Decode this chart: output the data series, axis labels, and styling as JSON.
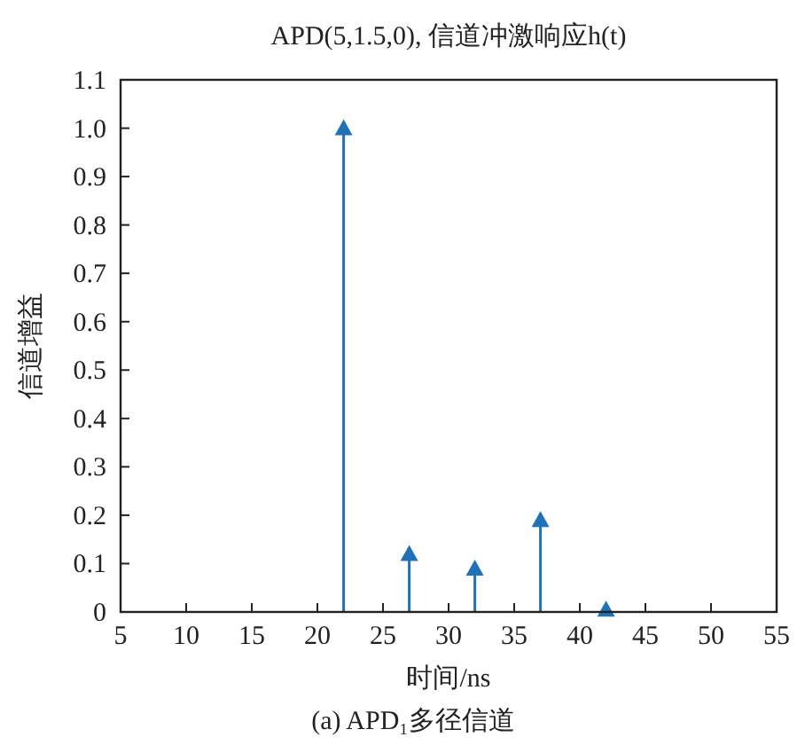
{
  "chart_data": {
    "type": "lollipop",
    "title": "APD(5,1.5,0), 信道冲激响应h(t)",
    "xlabel": "时间/ns",
    "ylabel": "信道增益",
    "annotations": [
      "(a) APD₁多径信道"
    ],
    "x": [
      22,
      27,
      32,
      37,
      42
    ],
    "values": [
      1.0,
      0.12,
      0.09,
      0.19,
      0.005
    ],
    "color": "#1f72b8",
    "marker": "triangle",
    "xlim": [
      5,
      55
    ],
    "ylim": [
      0,
      1.1
    ],
    "xticks": [
      5,
      10,
      15,
      20,
      25,
      30,
      35,
      40,
      45,
      50,
      55
    ],
    "yticks": [
      0,
      {
        "value": 0.1,
        "label": "0.1"
      },
      {
        "value": 0.2,
        "label": "0.2"
      },
      {
        "value": 0.3,
        "label": "0.3"
      },
      {
        "value": 0.4,
        "label": "0.4"
      },
      {
        "value": 0.5,
        "label": "0.5"
      },
      {
        "value": 0.6,
        "label": "0.6"
      },
      {
        "value": 0.7,
        "label": "0.7"
      },
      {
        "value": 0.8,
        "label": "0.8"
      },
      {
        "value": 0.9,
        "label": "0.9"
      },
      {
        "value": 1,
        "label": "1.0"
      },
      {
        "value": 1.1,
        "label": "1.1"
      }
    ]
  }
}
